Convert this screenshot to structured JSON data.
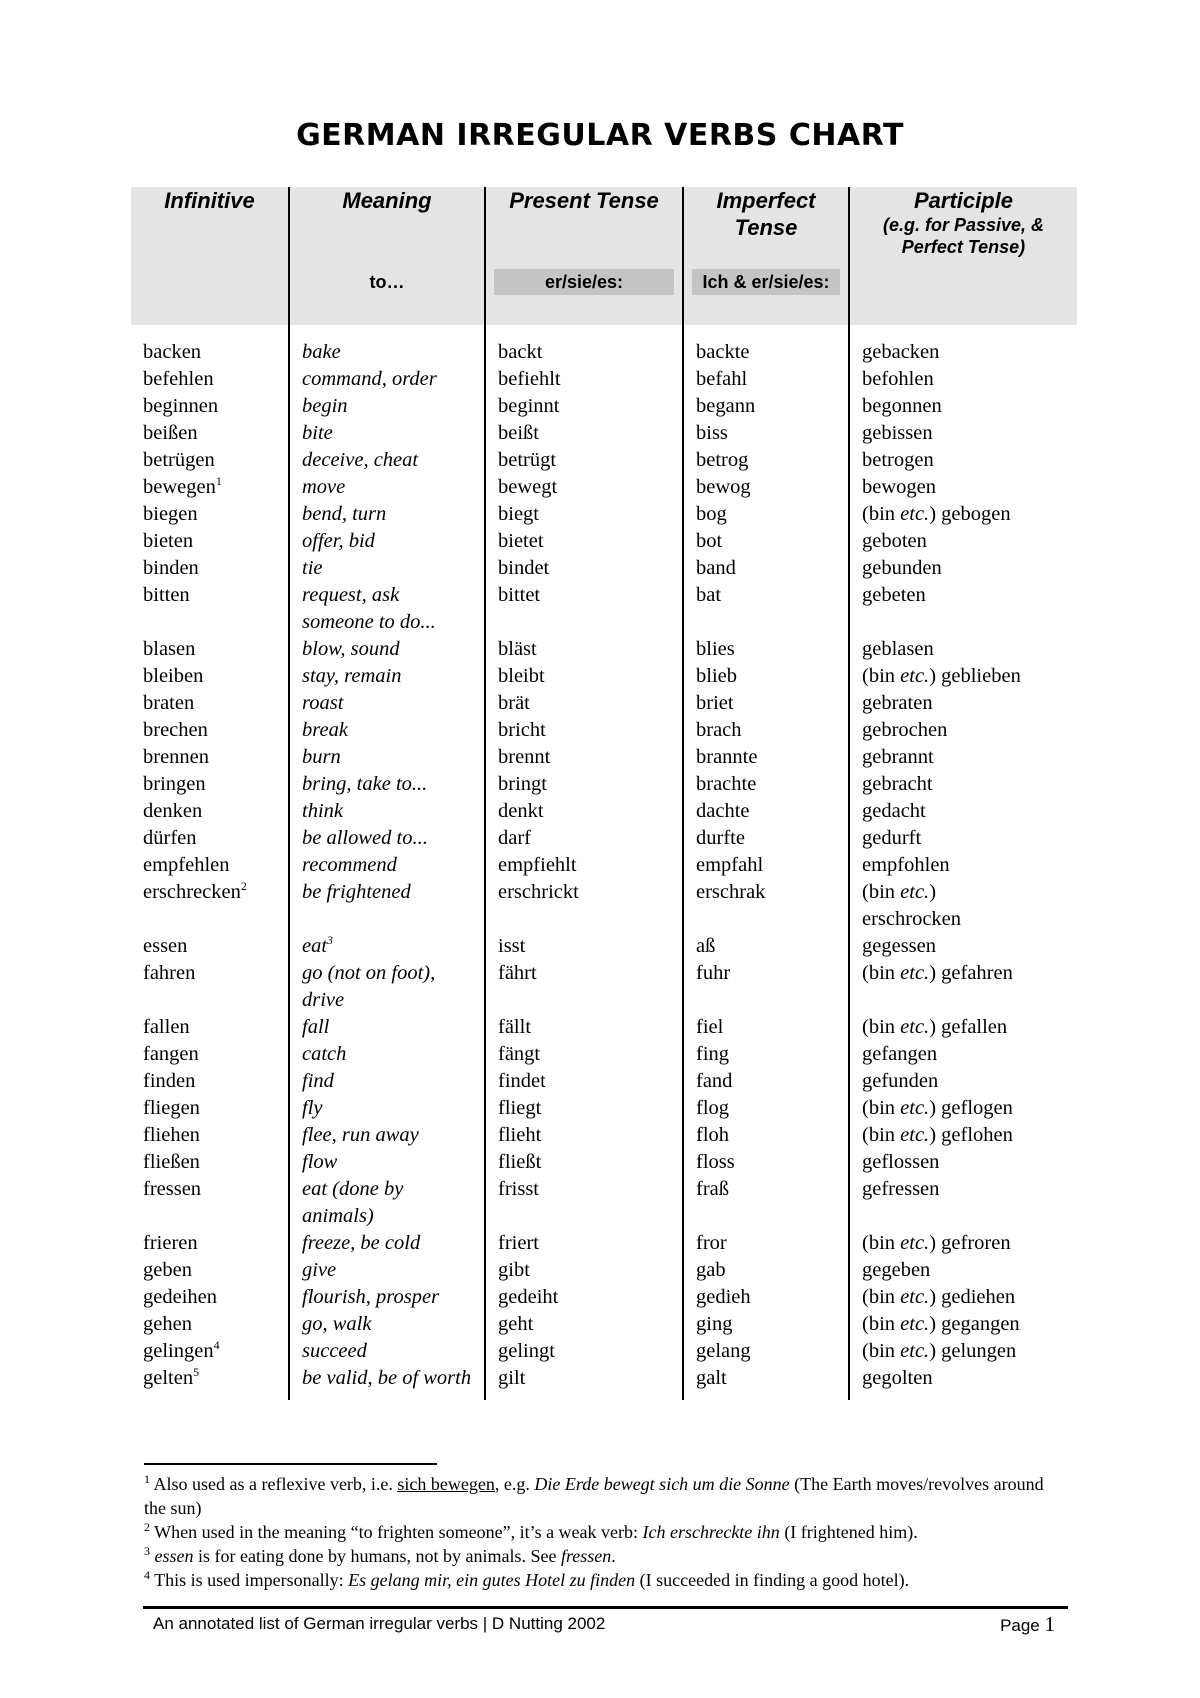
{
  "title": "GERMAN IRREGULAR VERBS CHART",
  "headers": {
    "infinitive": "Infinitive",
    "meaning": "Meaning",
    "meaning_sub": "to…",
    "present": "Present Tense",
    "present_sub": "er/sie/es:",
    "imperfect": "Imperfect Tense",
    "imperfect_sub": "Ich & er/sie/es:",
    "participle": "Participle",
    "participle_note": "(e.g. for Passive, & Perfect Tense)"
  },
  "aux_prefix": "(bin ",
  "aux_etc": "etc.",
  "aux_suffix": ")",
  "rows": [
    {
      "inf": "backen",
      "sup": "",
      "mean": "bake",
      "pres": "backt",
      "imp": "backte",
      "aux": false,
      "part": "gebacken"
    },
    {
      "inf": "befehlen",
      "sup": "",
      "mean": "command, order",
      "pres": "befiehlt",
      "imp": "befahl",
      "aux": false,
      "part": "befohlen"
    },
    {
      "inf": "beginnen",
      "sup": "",
      "mean": "begin",
      "pres": "beginnt",
      "imp": "begann",
      "aux": false,
      "part": "begonnen"
    },
    {
      "inf": "beißen",
      "sup": "",
      "mean": "bite",
      "pres": "beißt",
      "imp": "biss",
      "aux": false,
      "part": "gebissen"
    },
    {
      "inf": "betrügen",
      "sup": "",
      "mean": "deceive, cheat",
      "pres": "betrügt",
      "imp": "betrog",
      "aux": false,
      "part": "betrogen"
    },
    {
      "inf": "bewegen",
      "sup": "1",
      "mean": "move",
      "pres": "bewegt",
      "imp": "bewog",
      "aux": false,
      "part": "bewogen"
    },
    {
      "inf": "biegen",
      "sup": "",
      "mean": "bend, turn",
      "pres": "biegt",
      "imp": "bog",
      "aux": true,
      "part": "gebogen"
    },
    {
      "inf": "bieten",
      "sup": "",
      "mean": "offer, bid",
      "pres": "bietet",
      "imp": "bot",
      "aux": false,
      "part": "geboten"
    },
    {
      "inf": "binden",
      "sup": "",
      "mean": "tie",
      "pres": "bindet",
      "imp": "band",
      "aux": false,
      "part": "gebunden"
    },
    {
      "inf": "bitten",
      "sup": "",
      "mean": "request, ask someone to do...",
      "pres": "bittet",
      "imp": "bat",
      "aux": false,
      "part": "gebeten"
    },
    {
      "inf": "blasen",
      "sup": "",
      "mean": "blow, sound",
      "pres": "bläst",
      "imp": "blies",
      "aux": false,
      "part": "geblasen"
    },
    {
      "inf": "bleiben",
      "sup": "",
      "mean": "stay, remain",
      "pres": "bleibt",
      "imp": "blieb",
      "aux": true,
      "part": "geblieben"
    },
    {
      "inf": "braten",
      "sup": "",
      "mean": "roast",
      "pres": "brät",
      "imp": "briet",
      "aux": false,
      "part": "gebraten"
    },
    {
      "inf": "brechen",
      "sup": "",
      "mean": "break",
      "pres": "bricht",
      "imp": "brach",
      "aux": false,
      "part": "gebrochen"
    },
    {
      "inf": "brennen",
      "sup": "",
      "mean": "burn",
      "pres": "brennt",
      "imp": "brannte",
      "aux": false,
      "part": "gebrannt"
    },
    {
      "inf": "bringen",
      "sup": "",
      "mean": "bring, take to...",
      "pres": "bringt",
      "imp": "brachte",
      "aux": false,
      "part": "gebracht"
    },
    {
      "inf": "denken",
      "sup": "",
      "mean": "think",
      "pres": "denkt",
      "imp": "dachte",
      "aux": false,
      "part": "gedacht"
    },
    {
      "inf": "dürfen",
      "sup": "",
      "mean": "be allowed to...",
      "pres": "darf",
      "imp": "durfte",
      "aux": false,
      "part": "gedurft"
    },
    {
      "inf": "empfehlen",
      "sup": "",
      "mean": "recommend",
      "pres": "empfiehlt",
      "imp": "empfahl",
      "aux": false,
      "part": "empfohlen"
    },
    {
      "inf": "erschrecken",
      "sup": "2",
      "mean": "be frightened",
      "pres": "erschrickt",
      "imp": "erschrak",
      "aux": true,
      "part": "erschrocken"
    },
    {
      "inf": "essen",
      "sup": "",
      "mean": "eat",
      "mean_sup": "3",
      "pres": "isst",
      "imp": "aß",
      "aux": false,
      "part": "gegessen"
    },
    {
      "inf": "fahren",
      "sup": "",
      "mean": "go (not on foot), drive",
      "pres": "fährt",
      "imp": "fuhr",
      "aux": true,
      "part": "gefahren"
    },
    {
      "inf": "fallen",
      "sup": "",
      "mean": "fall",
      "pres": "fällt",
      "imp": "fiel",
      "aux": true,
      "part": "gefallen"
    },
    {
      "inf": "fangen",
      "sup": "",
      "mean": "catch",
      "pres": "fängt",
      "imp": "fing",
      "aux": false,
      "part": "gefangen"
    },
    {
      "inf": "finden",
      "sup": "",
      "mean": "find",
      "pres": "findet",
      "imp": "fand",
      "aux": false,
      "part": "gefunden"
    },
    {
      "inf": "fliegen",
      "sup": "",
      "mean": "fly",
      "pres": "fliegt",
      "imp": "flog",
      "aux": true,
      "part": "geflogen"
    },
    {
      "inf": "fliehen",
      "sup": "",
      "mean": "flee, run away",
      "pres": "flieht",
      "imp": "floh",
      "aux": true,
      "part": "geflohen"
    },
    {
      "inf": "fließen",
      "sup": "",
      "mean": "flow",
      "pres": "fließt",
      "imp": "floss",
      "aux": false,
      "part": "geflossen"
    },
    {
      "inf": "fressen",
      "sup": "",
      "mean": "eat (done by animals)",
      "pres": "frisst",
      "imp": "fraß",
      "aux": false,
      "part": "gefressen"
    },
    {
      "inf": "frieren",
      "sup": "",
      "mean": "freeze, be cold",
      "pres": "friert",
      "imp": "fror",
      "aux": true,
      "part": "gefroren"
    },
    {
      "inf": "geben",
      "sup": "",
      "mean": "give",
      "pres": "gibt",
      "imp": "gab",
      "aux": false,
      "part": "gegeben"
    },
    {
      "inf": "gedeihen",
      "sup": "",
      "mean": "flourish, prosper",
      "pres": "gedeiht",
      "imp": "gedieh",
      "aux": true,
      "part": "gediehen"
    },
    {
      "inf": "gehen",
      "sup": "",
      "mean": "go, walk",
      "pres": "geht",
      "imp": "ging",
      "aux": true,
      "part": "gegangen"
    },
    {
      "inf": "gelingen",
      "sup": "4",
      "mean": "succeed",
      "pres": "gelingt",
      "imp": "gelang",
      "aux": true,
      "part": "gelungen"
    },
    {
      "inf": "gelten",
      "sup": "5",
      "mean": "be valid, be of worth",
      "pres": "gilt",
      "imp": "galt",
      "aux": false,
      "part": "gegolten"
    }
  ],
  "footnotes": [
    {
      "num": "1",
      "parts": [
        {
          "t": " Also used as a reflexive verb, i.e. ",
          "s": ""
        },
        {
          "t": "sich bewegen",
          "s": "u"
        },
        {
          "t": ", e.g. ",
          "s": ""
        },
        {
          "t": "Die Erde bewegt sich um die Sonne",
          "s": "i"
        },
        {
          "t": " (The Earth moves/revolves around the sun)",
          "s": ""
        }
      ]
    },
    {
      "num": "2",
      "parts": [
        {
          "t": " When used in the meaning “to frighten someone”, it’s a weak verb: ",
          "s": ""
        },
        {
          "t": "Ich erschreckte ihn",
          "s": "i"
        },
        {
          "t": " (I frightened him).",
          "s": ""
        }
      ]
    },
    {
      "num": "3",
      "parts": [
        {
          "t": " essen",
          "s": "i"
        },
        {
          "t": " is for eating done by humans, not by animals. See ",
          "s": ""
        },
        {
          "t": "fressen",
          "s": "i"
        },
        {
          "t": ".",
          "s": ""
        }
      ]
    },
    {
      "num": "4",
      "parts": [
        {
          "t": " This is used impersonally: ",
          "s": ""
        },
        {
          "t": "Es gelang mir, ein gutes Hotel zu finden",
          "s": "i"
        },
        {
          "t": " (I succeeded in finding a good hotel).",
          "s": ""
        }
      ]
    }
  ],
  "footer": {
    "text": "An annotated list of German irregular verbs | D Nutting 2002",
    "page_label": "Page ",
    "page_number": "1"
  }
}
